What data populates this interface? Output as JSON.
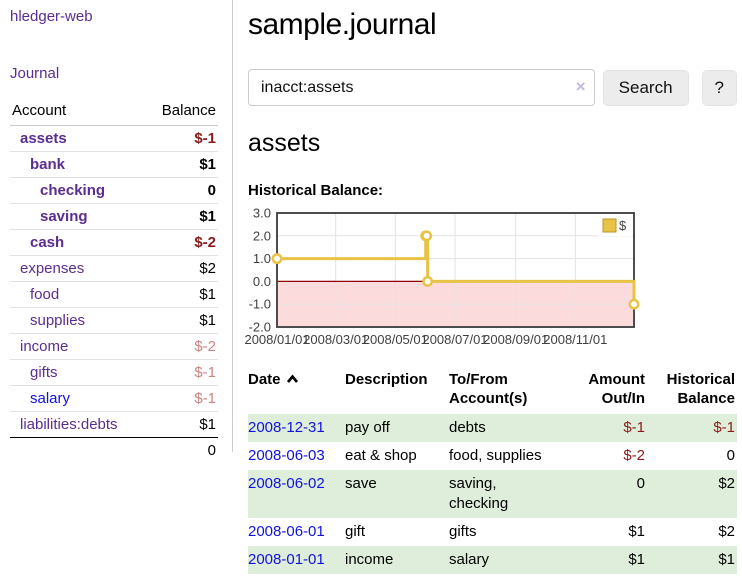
{
  "colors": {
    "link_purple": "#5c2d91",
    "link_blue": "#1212dd",
    "negative_strong": "#8b1a1a",
    "negative_soft": "#c98484",
    "row_stripe_green": "#dfeedb",
    "button_bg": "#ececec"
  },
  "sidebar": {
    "brand": "hledger-web",
    "journal_link": "Journal",
    "header": {
      "account": "Account",
      "balance": "Balance"
    },
    "accounts": [
      {
        "name": "assets",
        "balance": "$-1",
        "depth": 0,
        "bold": true,
        "neg": "strong"
      },
      {
        "name": "bank",
        "balance": "$1",
        "depth": 1,
        "bold": true
      },
      {
        "name": "checking",
        "balance": "0",
        "depth": 2,
        "bold": true
      },
      {
        "name": "saving",
        "balance": "$1",
        "depth": 2,
        "bold": true
      },
      {
        "name": "cash",
        "balance": "$-2",
        "depth": 1,
        "bold": true,
        "neg": "strong"
      },
      {
        "name": "expenses",
        "balance": "$2",
        "depth": 0
      },
      {
        "name": "food",
        "balance": "$1",
        "depth": 1
      },
      {
        "name": "supplies",
        "balance": "$1",
        "depth": 1
      },
      {
        "name": "income",
        "balance": "$-2",
        "depth": 0,
        "neg": "soft"
      },
      {
        "name": "gifts",
        "balance": "$-1",
        "depth": 1,
        "neg": "soft"
      },
      {
        "name": "salary",
        "balance": "$-1",
        "depth": 1,
        "neg": "soft",
        "blue": true
      },
      {
        "name": "liabilities:debts",
        "balance": "$1",
        "depth": 0
      }
    ],
    "total": "0"
  },
  "main": {
    "title": "sample.journal",
    "account_heading": "assets",
    "chart_label": "Historical Balance:"
  },
  "search": {
    "value": "inacct:assets",
    "clear_label": "×",
    "search_button": "Search",
    "help_button": "?"
  },
  "chart_data": {
    "type": "line",
    "step": true,
    "title": "Historical Balance:",
    "series": [
      {
        "name": "$",
        "color": "#e9c345",
        "points": [
          [
            "2008-01-01",
            1
          ],
          [
            "2008-06-01",
            2
          ],
          [
            "2008-06-02",
            2
          ],
          [
            "2008-06-03",
            0
          ],
          [
            "2008-12-31",
            -1
          ]
        ]
      }
    ],
    "x_range": [
      "2008-01-01",
      "2008-12-31"
    ],
    "ylim": [
      -2,
      3
    ],
    "y_ticks": [
      "3.0",
      "2.0",
      "1.0",
      "0.0",
      "-1.0",
      "-2.0"
    ],
    "x_ticks": [
      {
        "date": "2008-01-01",
        "label": "2008/01/01"
      },
      {
        "date": "2008-03-01",
        "label": "2008/03/01"
      },
      {
        "date": "2008-05-01",
        "label": "2008/05/01"
      },
      {
        "date": "2008-07-01",
        "label": "2008/07/01"
      },
      {
        "date": "2008-09-01",
        "label": "2008/09/01"
      },
      {
        "date": "2008-11-01",
        "label": "2008/11/01"
      }
    ],
    "legend": {
      "label": "$",
      "position": "top-right"
    },
    "grid": true,
    "grid_color": "#e3e3e3",
    "border_color": "#4d4d4d",
    "negative_region_color": "#fbdbdb",
    "zero_line_color": "#8b0000"
  },
  "register": {
    "headers": {
      "date": "Date",
      "description": "Description",
      "accounts": "To/From Account(s)",
      "amount": "Amount Out/In",
      "balance": "Historical Balance"
    },
    "rows": [
      {
        "date": "2008-12-31",
        "description": "pay off",
        "accounts": "debts",
        "amount": "$-1",
        "balance": "$-1"
      },
      {
        "date": "2008-06-03",
        "description": "eat & shop",
        "accounts": "food, supplies",
        "amount": "$-2",
        "balance": "0"
      },
      {
        "date": "2008-06-02",
        "description": "save",
        "accounts": "saving, checking",
        "amount": "0",
        "balance": "$2"
      },
      {
        "date": "2008-06-01",
        "description": "gift",
        "accounts": "gifts",
        "amount": "$1",
        "balance": "$2"
      },
      {
        "date": "2008-01-01",
        "description": "income",
        "accounts": "salary",
        "amount": "$1",
        "balance": "$1"
      }
    ]
  }
}
